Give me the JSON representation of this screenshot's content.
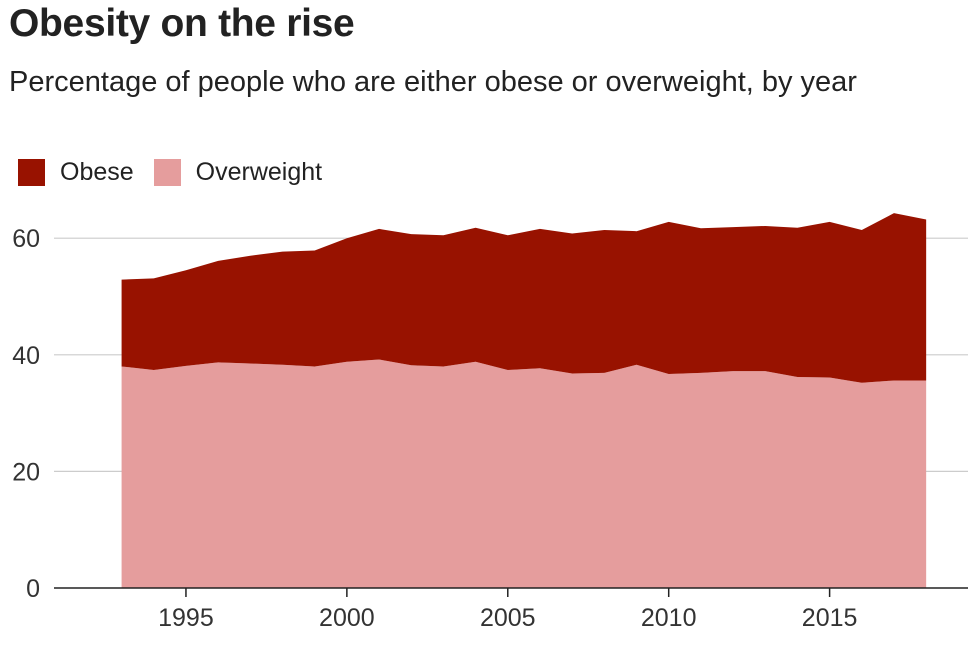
{
  "title": "Obesity on the rise",
  "subtitle": "Percentage of people who are either obese or overweight, by year",
  "legend": [
    {
      "label": "Obese",
      "color": "#981200"
    },
    {
      "label": "Overweight",
      "color": "#e59d9d"
    }
  ],
  "chart_data": {
    "type": "area",
    "stacked": true,
    "x": [
      1993,
      1994,
      1995,
      1996,
      1997,
      1998,
      1999,
      2000,
      2001,
      2002,
      2003,
      2004,
      2005,
      2006,
      2007,
      2008,
      2009,
      2010,
      2011,
      2012,
      2013,
      2014,
      2015,
      2016,
      2017,
      2018
    ],
    "series": [
      {
        "name": "Overweight",
        "color": "#e59d9d",
        "values": [
          38.0,
          37.4,
          38.1,
          38.7,
          38.5,
          38.3,
          38.0,
          38.8,
          39.2,
          38.2,
          38.0,
          38.8,
          37.4,
          37.7,
          36.8,
          36.9,
          38.3,
          36.7,
          36.9,
          37.2,
          37.2,
          36.2,
          36.1,
          35.2,
          35.6,
          35.6
        ]
      },
      {
        "name": "Obese",
        "color": "#981200",
        "values": [
          14.9,
          15.7,
          16.4,
          17.4,
          18.5,
          19.4,
          19.9,
          21.2,
          22.4,
          22.5,
          22.5,
          23.0,
          23.1,
          23.9,
          24.0,
          24.5,
          22.9,
          26.1,
          24.8,
          24.7,
          24.9,
          25.6,
          26.7,
          26.2,
          28.7,
          27.6
        ]
      }
    ],
    "yticks": [
      0,
      20,
      40,
      60
    ],
    "xticks": [
      1995,
      2000,
      2005,
      2010,
      2015
    ],
    "ylim": [
      0,
      65
    ],
    "xlim": [
      1990.9,
      2019.3
    ],
    "grid": true,
    "legend_position": "top-left"
  }
}
